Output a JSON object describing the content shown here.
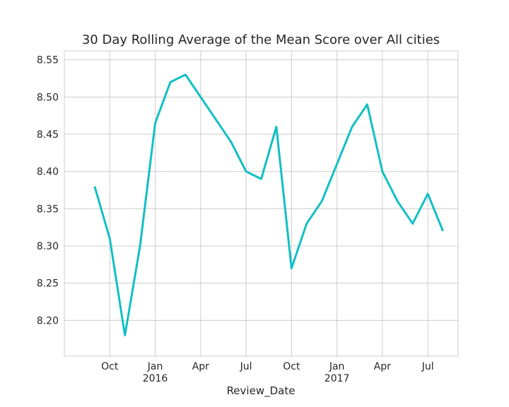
{
  "chart_data": {
    "type": "line",
    "title": "30 Day Rolling Average of the Mean Score over All cities",
    "xlabel": "Review_Date",
    "x": [
      "2015-09",
      "2015-10",
      "2015-11",
      "2015-12",
      "2016-01",
      "2016-02",
      "2016-03",
      "2016-04",
      "2016-05",
      "2016-06",
      "2016-07",
      "2016-08",
      "2016-09",
      "2016-10",
      "2016-11",
      "2016-12",
      "2017-01",
      "2017-02",
      "2017-03",
      "2017-04",
      "2017-05",
      "2017-06",
      "2017-07",
      "2017-08"
    ],
    "series": [
      {
        "name": "Mean Score",
        "color": "#12bfc4",
        "values": [
          8.38,
          8.31,
          8.18,
          8.3,
          8.465,
          8.52,
          8.53,
          8.5,
          8.47,
          8.44,
          8.4,
          8.39,
          8.46,
          8.27,
          8.33,
          8.36,
          8.41,
          8.46,
          8.49,
          8.4,
          8.36,
          8.33,
          8.37,
          8.32
        ]
      }
    ],
    "xlim": [
      "2015-07",
      "2017-09"
    ],
    "xticks": [
      {
        "value": "2015-10",
        "label": "Oct"
      },
      {
        "value": "2016-01",
        "label": "Jan\n2016"
      },
      {
        "value": "2016-04",
        "label": "Apr"
      },
      {
        "value": "2016-07",
        "label": "Jul"
      },
      {
        "value": "2016-10",
        "label": "Oct"
      },
      {
        "value": "2017-01",
        "label": "Jan\n2017"
      },
      {
        "value": "2017-04",
        "label": "Apr"
      },
      {
        "value": "2017-07",
        "label": "Jul"
      }
    ],
    "ylim": [
      8.152,
      8.562
    ],
    "yticks": [
      {
        "value": 8.2,
        "label": "8.20"
      },
      {
        "value": 8.25,
        "label": "8.25"
      },
      {
        "value": 8.3,
        "label": "8.30"
      },
      {
        "value": 8.35,
        "label": "8.35"
      },
      {
        "value": 8.4,
        "label": "8.40"
      },
      {
        "value": 8.45,
        "label": "8.45"
      },
      {
        "value": 8.5,
        "label": "8.50"
      },
      {
        "value": 8.55,
        "label": "8.55"
      }
    ],
    "grid": true
  }
}
